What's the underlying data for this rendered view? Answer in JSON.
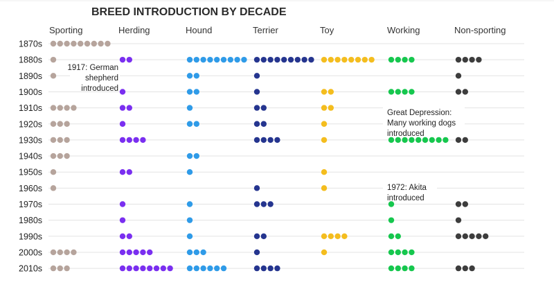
{
  "chart_data": {
    "type": "dot-matrix",
    "title": "BREED INTRODUCTION BY DECADE",
    "categories": [
      "1870s",
      "1880s",
      "1890s",
      "1900s",
      "1910s",
      "1920s",
      "1930s",
      "1940s",
      "1950s",
      "1960s",
      "1970s",
      "1980s",
      "1990s",
      "2000s",
      "2010s"
    ],
    "series": [
      {
        "name": "Sporting",
        "color": "#b6a49c",
        "values": [
          9,
          1,
          1,
          0,
          4,
          3,
          3,
          3,
          1,
          1,
          0,
          0,
          0,
          4,
          3
        ]
      },
      {
        "name": "Herding",
        "color": "#7a2ff0",
        "values": [
          0,
          2,
          0,
          1,
          2,
          1,
          4,
          0,
          2,
          0,
          1,
          1,
          2,
          5,
          8
        ]
      },
      {
        "name": "Hound",
        "color": "#2f9be8",
        "values": [
          0,
          9,
          2,
          2,
          1,
          2,
          0,
          2,
          1,
          0,
          1,
          1,
          1,
          3,
          6
        ]
      },
      {
        "name": "Terrier",
        "color": "#25358f",
        "values": [
          0,
          9,
          1,
          1,
          2,
          2,
          4,
          0,
          0,
          1,
          3,
          0,
          2,
          1,
          4
        ]
      },
      {
        "name": "Toy",
        "color": "#f4bd1e",
        "values": [
          0,
          8,
          0,
          2,
          2,
          1,
          1,
          0,
          1,
          1,
          0,
          0,
          4,
          1,
          0
        ]
      },
      {
        "name": "Working",
        "color": "#16c74e",
        "values": [
          0,
          4,
          0,
          4,
          0,
          0,
          9,
          0,
          0,
          0,
          1,
          1,
          2,
          4,
          4
        ]
      },
      {
        "name": "Non-sporting",
        "color": "#3d3d3d",
        "values": [
          0,
          4,
          1,
          2,
          0,
          0,
          2,
          0,
          0,
          0,
          2,
          1,
          5,
          0,
          3
        ]
      }
    ],
    "annotations": [
      {
        "series": "Herding",
        "text": [
          "1917: German",
          "shepherd",
          "introduced"
        ]
      },
      {
        "series": "Working",
        "text": [
          "Great Depression:",
          "Many working dogs",
          "introduced"
        ]
      },
      {
        "series": "Working",
        "text": [
          "1972: Akita",
          "introduced"
        ]
      }
    ]
  }
}
